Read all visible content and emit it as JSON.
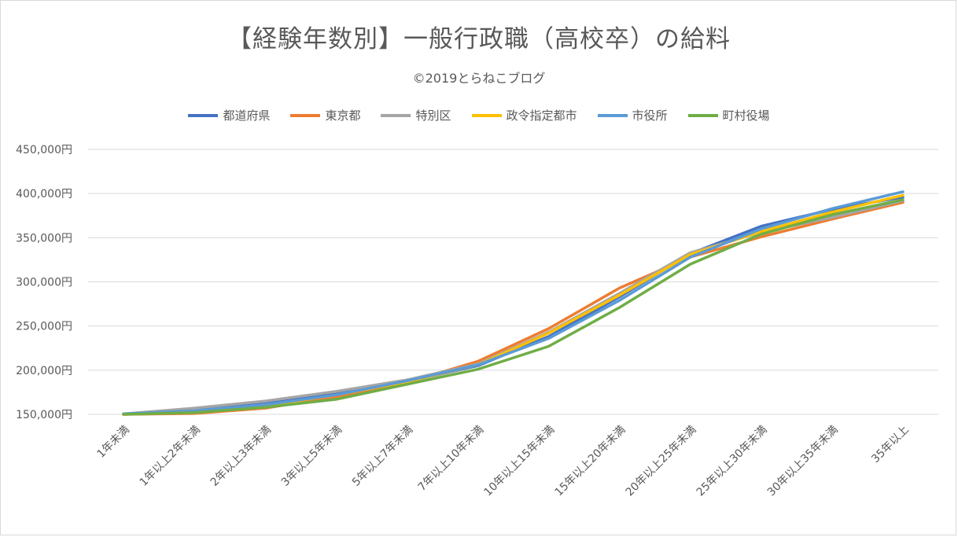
{
  "chart_data": {
    "type": "line",
    "title": "【経験年数別】一般行政職（高校卒）の給料",
    "subtitle": "©2019とらねこブログ",
    "xlabel": "",
    "ylabel": "",
    "ylim": [
      150000,
      450000
    ],
    "yticks": [
      "150,000円",
      "200,000円",
      "250,000円",
      "300,000円",
      "350,000円",
      "400,000円",
      "450,000円"
    ],
    "ytick_values": [
      150000,
      200000,
      250000,
      300000,
      350000,
      400000,
      450000
    ],
    "grid": true,
    "legend_position": "top",
    "categories": [
      "1年未満",
      "1年以上2年未満",
      "2年以上3年未満",
      "3年以上5年未満",
      "5年以上7年未満",
      "7年以上10年未満",
      "10年以上15年未満",
      "15年以上20年未満",
      "20年以上25年未満",
      "25年以上30年未満",
      "30年以上35年未満",
      "35年以上"
    ],
    "series": [
      {
        "name": "都道府県",
        "color": "#4472c4",
        "values": [
          150500,
          155000,
          162000,
          173000,
          187000,
          205000,
          238000,
          283000,
          332000,
          363000,
          382000,
          396000
        ]
      },
      {
        "name": "東京都",
        "color": "#ed7d31",
        "values": [
          150000,
          151000,
          157000,
          170000,
          186000,
          210000,
          247000,
          293000,
          328000,
          351000,
          371000,
          390000
        ]
      },
      {
        "name": "特別区",
        "color": "#a5a5a5",
        "values": [
          150500,
          157000,
          165000,
          176000,
          189000,
          207000,
          243000,
          287000,
          333000,
          356000,
          373000,
          392000
        ]
      },
      {
        "name": "政令指定都市",
        "color": "#ffc000",
        "values": [
          150000,
          153000,
          160000,
          172000,
          187000,
          206000,
          242000,
          285000,
          331000,
          357000,
          379000,
          398000
        ]
      },
      {
        "name": "市役所",
        "color": "#5b9bd5",
        "values": [
          150500,
          154000,
          161000,
          172000,
          188000,
          206000,
          236000,
          279000,
          328000,
          360000,
          383000,
          402000
        ]
      },
      {
        "name": "町村役場",
        "color": "#70ad47",
        "values": [
          150000,
          152000,
          158000,
          167000,
          184000,
          201000,
          227000,
          271000,
          320000,
          354000,
          376000,
          393000
        ]
      }
    ]
  }
}
